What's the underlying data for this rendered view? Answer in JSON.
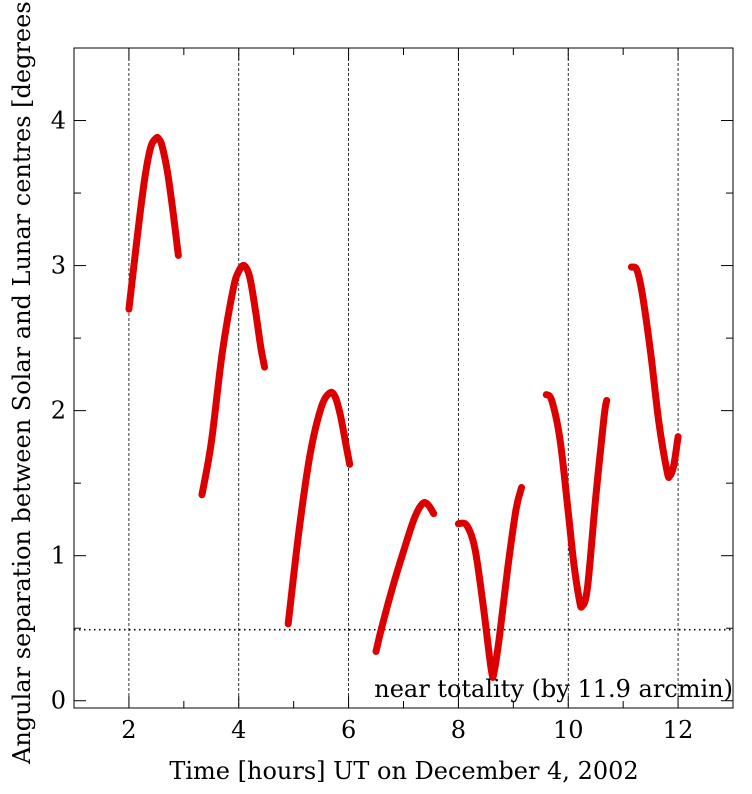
{
  "chart_data": {
    "type": "line",
    "title": "",
    "xlabel": "Time [hours] UT on December 4, 2002",
    "ylabel": "Angular separation between Solar and Lunar centres [degrees]",
    "xlim": [
      1,
      13
    ],
    "ylim": [
      -0.05,
      4.5
    ],
    "xticks": [
      2,
      4,
      6,
      8,
      10,
      12
    ],
    "yticks": [
      0,
      1,
      2,
      3,
      4
    ],
    "x_tick_labels": [
      "2",
      "4",
      "6",
      "8",
      "10",
      "12"
    ],
    "y_tick_labels": [
      "0",
      "1",
      "2",
      "3",
      "4"
    ],
    "grid": "vertical dotted lines at x tick positions",
    "legend": "none",
    "series_color": "#dd0000",
    "reference_line": {
      "y": 0.49,
      "style": "dotted"
    },
    "annotation": "near totality (by  11.9 arcmin)",
    "series": [
      {
        "x": [
          2.0,
          2.1,
          2.2,
          2.3,
          2.4,
          2.5,
          2.55,
          2.6,
          2.7,
          2.8,
          2.9
        ],
        "y": [
          2.7,
          3.03,
          3.35,
          3.63,
          3.82,
          3.88,
          3.87,
          3.83,
          3.65,
          3.38,
          3.07
        ]
      },
      {
        "x": [
          3.33,
          3.5,
          3.7,
          3.9,
          4.0,
          4.1,
          4.2,
          4.3,
          4.4,
          4.47
        ],
        "y": [
          1.42,
          1.78,
          2.4,
          2.84,
          2.96,
          3.0,
          2.92,
          2.7,
          2.44,
          2.3
        ]
      },
      {
        "x": [
          4.9,
          5.1,
          5.3,
          5.5,
          5.65,
          5.75,
          5.85,
          5.95,
          6.02
        ],
        "y": [
          0.53,
          1.18,
          1.7,
          2.02,
          2.12,
          2.1,
          1.97,
          1.77,
          1.63
        ]
      },
      {
        "x": [
          6.5,
          6.6,
          6.8,
          7.0,
          7.2,
          7.35,
          7.45,
          7.55
        ],
        "y": [
          0.34,
          0.5,
          0.78,
          1.03,
          1.26,
          1.36,
          1.35,
          1.29
        ]
      },
      {
        "x": [
          8.0,
          8.15,
          8.3,
          8.45,
          8.6,
          8.65,
          8.75,
          8.9,
          9.05,
          9.15
        ],
        "y": [
          1.22,
          1.21,
          1.05,
          0.66,
          0.21,
          0.2,
          0.45,
          0.92,
          1.32,
          1.47
        ]
      },
      {
        "x": [
          9.6,
          9.7,
          9.85,
          10.0,
          10.1,
          10.2,
          10.25,
          10.35,
          10.5,
          10.65,
          10.7
        ],
        "y": [
          2.11,
          2.07,
          1.8,
          1.3,
          0.95,
          0.7,
          0.65,
          0.78,
          1.4,
          1.95,
          2.07
        ]
      },
      {
        "x": [
          11.15,
          11.25,
          11.35,
          11.5,
          11.65,
          11.8,
          11.85,
          11.92,
          12.0
        ],
        "y": [
          2.99,
          2.97,
          2.8,
          2.4,
          1.92,
          1.58,
          1.55,
          1.62,
          1.82
        ]
      }
    ]
  }
}
